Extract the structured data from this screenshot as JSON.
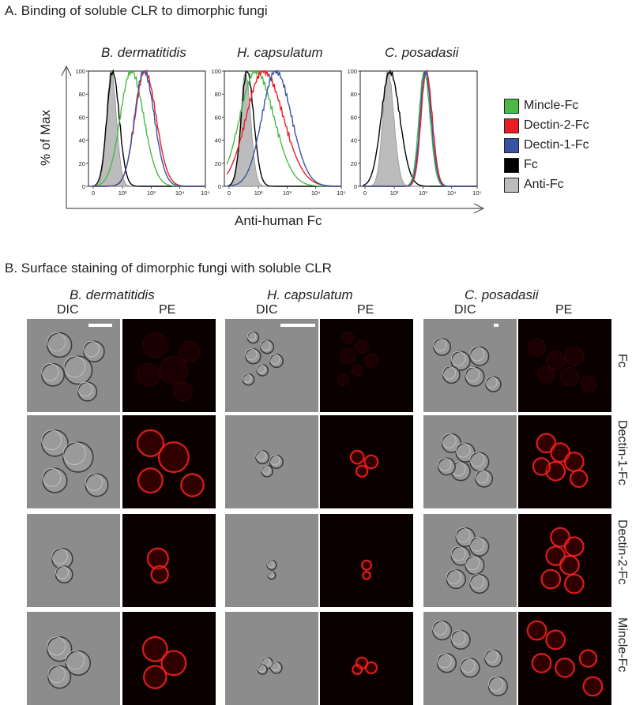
{
  "panel_a": {
    "heading": "A.   Binding of soluble CLR to dimorphic fungi",
    "ylabel": "% of Max",
    "xlabel": "Anti-human Fc",
    "species": [
      "B. dermatitidis",
      "H. capsulatum",
      "C. posadasii"
    ],
    "y_ticks": [
      "0",
      "20",
      "40",
      "60",
      "80",
      "100"
    ],
    "x_ticks": [
      "0",
      "10²",
      "10³",
      "10⁴",
      "10⁵"
    ],
    "legend": [
      {
        "label": "Mincle-Fc",
        "color": "#4cb847"
      },
      {
        "label": "Dectin-2-Fc",
        "color": "#ed1c24"
      },
      {
        "label": "Dectin-1-Fc",
        "color": "#3953a4"
      },
      {
        "label": "Fc",
        "color": "#000000"
      },
      {
        "label": "Anti-Fc",
        "color": "#bcbcbc"
      }
    ]
  },
  "chart_data": [
    {
      "type": "area",
      "title": "B. dermatitidis",
      "xlabel": "Anti-human Fc",
      "ylabel": "% of Max",
      "x_scale": "biexponential",
      "ylim": [
        0,
        100
      ],
      "series": [
        {
          "name": "Anti-Fc",
          "color": "#bcbcbc",
          "peak_x": 40,
          "width": 0.16,
          "filled": true
        },
        {
          "name": "Fc",
          "color": "#000000",
          "peak_x": 45,
          "width": 0.2
        },
        {
          "name": "Mincle-Fc",
          "color": "#4cb847",
          "peak_x": 200,
          "width": 0.38
        },
        {
          "name": "Dectin-2-Fc",
          "color": "#ed1c24",
          "peak_x": 600,
          "width": 0.34
        },
        {
          "name": "Dectin-1-Fc",
          "color": "#3953a4",
          "peak_x": 550,
          "width": 0.32
        }
      ]
    },
    {
      "type": "area",
      "title": "H. capsulatum",
      "xlabel": "Anti-human Fc",
      "ylabel": "% of Max",
      "x_scale": "biexponential",
      "ylim": [
        0,
        100
      ],
      "series": [
        {
          "name": "Anti-Fc",
          "color": "#bcbcbc",
          "peak_x": 35,
          "width": 0.16,
          "filled": true
        },
        {
          "name": "Fc",
          "color": "#000000",
          "peak_x": 40,
          "width": 0.2
        },
        {
          "name": "Mincle-Fc",
          "color": "#4cb847",
          "peak_x": 80,
          "width": 0.55
        },
        {
          "name": "Dectin-2-Fc",
          "color": "#ed1c24",
          "peak_x": 150,
          "width": 0.6
        },
        {
          "name": "Dectin-1-Fc",
          "color": "#3953a4",
          "peak_x": 400,
          "width": 0.48
        }
      ]
    },
    {
      "type": "area",
      "title": "C. posadasii",
      "xlabel": "Anti-human Fc",
      "ylabel": "% of Max",
      "x_scale": "biexponential",
      "ylim": [
        0,
        100
      ],
      "series": [
        {
          "name": "Anti-Fc",
          "color": "#bcbcbc",
          "peak_x": 60,
          "width": 0.18,
          "filled": true
        },
        {
          "name": "Fc",
          "color": "#000000",
          "peak_x": 70,
          "width": 0.3
        },
        {
          "name": "Mincle-Fc",
          "color": "#4cb847",
          "peak_x": 1100,
          "width": 0.18
        },
        {
          "name": "Dectin-2-Fc",
          "color": "#ed1c24",
          "peak_x": 1300,
          "width": 0.18
        },
        {
          "name": "Dectin-1-Fc",
          "color": "#3953a4",
          "peak_x": 1200,
          "width": 0.18
        }
      ]
    }
  ],
  "panel_b": {
    "heading": "B.    Surface staining of dimorphic fungi with soluble CLR",
    "species": [
      "B. dermatitidis",
      "H. capsulatum",
      "C. posadasii"
    ],
    "channels": [
      "DIC",
      "PE"
    ],
    "rows": [
      "Fc",
      "Dectin-1-Fc",
      "Dectin-2-Fc",
      "Mincle-Fc"
    ],
    "cell_color": "#ff2020"
  }
}
